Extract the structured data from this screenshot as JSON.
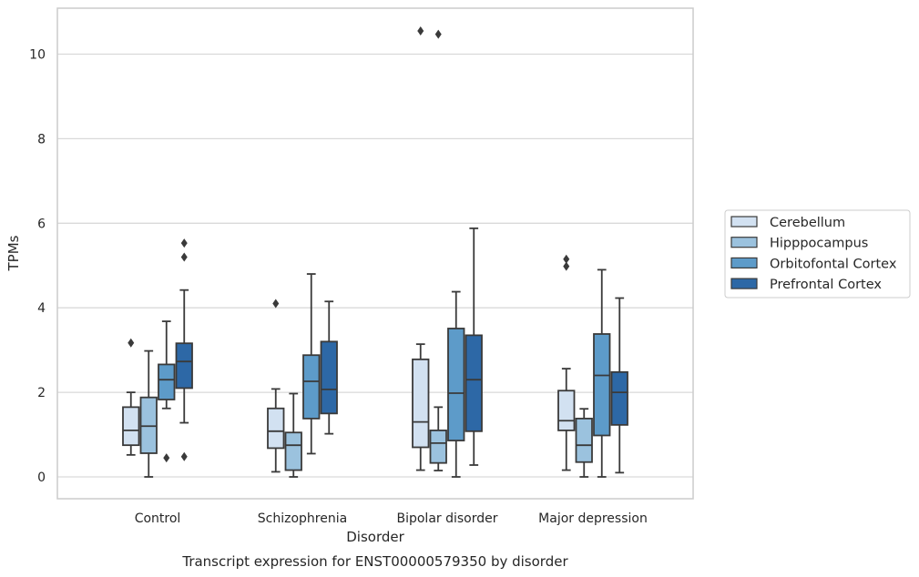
{
  "chart_data": {
    "type": "box",
    "xlabel": "Disorder",
    "ylabel": "TPMs",
    "caption": "Transcript expression for ENST00000579350 by disorder",
    "categories": [
      "Control",
      "Schizophrenia",
      "Bipolar disorder",
      "Major depression"
    ],
    "ylim": [
      -0.5,
      11.1
    ],
    "yticks": [
      0,
      2,
      4,
      6,
      8,
      10
    ],
    "grid": "horizontal",
    "legend_position": "right",
    "colors": {
      "grid": "#d9d9d9",
      "spine": "#cccccc",
      "edge": "#3a3a3a"
    },
    "series": [
      {
        "name": "Cerebellum",
        "color": "#d2e1f1",
        "boxes": [
          {
            "whisker_low": 0.52,
            "q1": 0.75,
            "median": 1.1,
            "q3": 1.65,
            "whisker_high": 2.0,
            "outliers": [
              3.17
            ]
          },
          {
            "whisker_low": 0.12,
            "q1": 0.68,
            "median": 1.08,
            "q3": 1.62,
            "whisker_high": 2.08,
            "outliers": [
              4.1
            ]
          },
          {
            "whisker_low": 0.16,
            "q1": 0.7,
            "median": 1.3,
            "q3": 2.78,
            "whisker_high": 3.14,
            "outliers": [
              10.55
            ]
          },
          {
            "whisker_low": 0.16,
            "q1": 1.1,
            "median": 1.33,
            "q3": 2.04,
            "whisker_high": 2.56,
            "outliers": [
              4.98,
              5.15
            ]
          }
        ]
      },
      {
        "name": "Hipppocampus",
        "color": "#9bc2de",
        "boxes": [
          {
            "whisker_low": 0.0,
            "q1": 0.56,
            "median": 1.2,
            "q3": 1.88,
            "whisker_high": 2.98,
            "outliers": []
          },
          {
            "whisker_low": 0.0,
            "q1": 0.16,
            "median": 0.75,
            "q3": 1.05,
            "whisker_high": 1.97,
            "outliers": []
          },
          {
            "whisker_low": 0.15,
            "q1": 0.33,
            "median": 0.8,
            "q3": 1.1,
            "whisker_high": 1.65,
            "outliers": [
              10.47
            ]
          },
          {
            "whisker_low": 0.0,
            "q1": 0.35,
            "median": 0.75,
            "q3": 1.38,
            "whisker_high": 1.61,
            "outliers": []
          }
        ]
      },
      {
        "name": "Orbitofontal Cortex",
        "color": "#5d9bc9",
        "boxes": [
          {
            "whisker_low": 1.62,
            "q1": 1.83,
            "median": 2.3,
            "q3": 2.66,
            "whisker_high": 3.68,
            "outliers": [
              0.45
            ]
          },
          {
            "whisker_low": 0.55,
            "q1": 1.38,
            "median": 2.26,
            "q3": 2.88,
            "whisker_high": 4.8,
            "outliers": []
          },
          {
            "whisker_low": 0.0,
            "q1": 0.86,
            "median": 1.98,
            "q3": 3.51,
            "whisker_high": 4.38,
            "outliers": []
          },
          {
            "whisker_low": 0.0,
            "q1": 0.98,
            "median": 2.4,
            "q3": 3.38,
            "whisker_high": 4.9,
            "outliers": []
          }
        ]
      },
      {
        "name": "Prefrontal Cortex",
        "color": "#2d68a6",
        "boxes": [
          {
            "whisker_low": 1.28,
            "q1": 2.1,
            "median": 2.73,
            "q3": 3.16,
            "whisker_high": 4.42,
            "outliers": [
              0.48,
              5.2,
              5.53
            ]
          },
          {
            "whisker_low": 1.02,
            "q1": 1.5,
            "median": 2.07,
            "q3": 3.2,
            "whisker_high": 4.15,
            "outliers": []
          },
          {
            "whisker_low": 0.28,
            "q1": 1.08,
            "median": 2.3,
            "q3": 3.35,
            "whisker_high": 5.88,
            "outliers": []
          },
          {
            "whisker_low": 0.1,
            "q1": 1.23,
            "median": 2.0,
            "q3": 2.48,
            "whisker_high": 4.23,
            "outliers": []
          }
        ]
      }
    ]
  }
}
